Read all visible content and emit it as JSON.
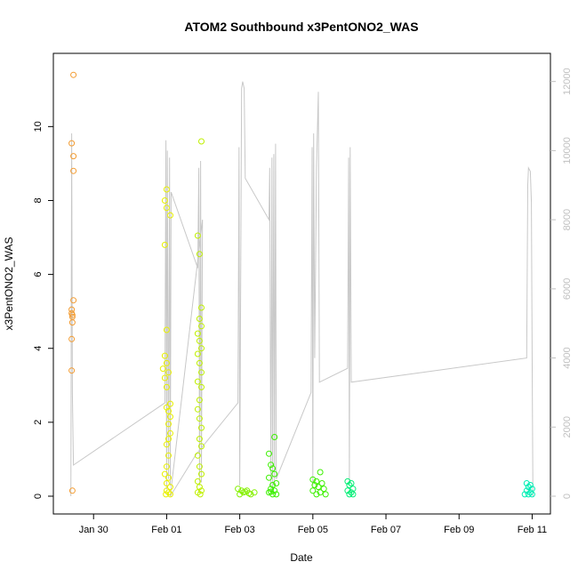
{
  "chart_data": {
    "type": "scatter",
    "title": "ATOM2 Southbound x3PentONO2_WAS",
    "xlabel": "Date",
    "ylabel": "x3PentONO2_WAS",
    "x_axis": {
      "ticks": [
        29.5,
        31.5,
        33.5,
        35.5,
        37.5,
        39.5,
        41.5
      ],
      "tick_labels": [
        "Jan 30",
        "Feb 01",
        "Feb 03",
        "Feb 05",
        "Feb 07",
        "Feb 09",
        "Feb 11"
      ]
    },
    "y_left": {
      "ticks": [
        0,
        2,
        4,
        6,
        8,
        10
      ],
      "lim": [
        0,
        11.5
      ]
    },
    "y_right": {
      "ticks": [
        0,
        2000,
        4000,
        6000,
        8000,
        10000,
        12000
      ],
      "lim": [
        0,
        12300
      ],
      "color": "#c0c0c0"
    },
    "xlim": [
      28.4,
      42.0
    ],
    "point_colors": {
      "orange": "#f39c32",
      "yellow": "#e8f000",
      "yellowgreen": "#bff000",
      "lime": "#84f000",
      "green": "#3cf000",
      "mint": "#00ee74",
      "aqua": "#00eeb4"
    },
    "altitude_line_color": "#c8c8c8",
    "series": [
      {
        "color": "orange",
        "points": [
          [
            28.95,
            11.4
          ],
          [
            28.9,
            9.55
          ],
          [
            28.95,
            9.2
          ],
          [
            28.95,
            8.8
          ],
          [
            28.95,
            5.3
          ],
          [
            28.9,
            5.05
          ],
          [
            28.9,
            4.95
          ],
          [
            28.92,
            4.9
          ],
          [
            28.92,
            4.85
          ],
          [
            28.92,
            4.7
          ],
          [
            28.9,
            4.25
          ],
          [
            28.9,
            3.4
          ],
          [
            28.92,
            0.15
          ]
        ]
      },
      {
        "color": "yellow",
        "points": [
          [
            31.5,
            8.3
          ],
          [
            31.45,
            8.0
          ],
          [
            31.5,
            7.8
          ],
          [
            31.6,
            7.6
          ],
          [
            31.45,
            6.8
          ],
          [
            31.5,
            4.5
          ],
          [
            31.45,
            3.8
          ],
          [
            31.5,
            3.6
          ],
          [
            31.4,
            3.45
          ],
          [
            31.55,
            3.35
          ],
          [
            31.45,
            3.2
          ],
          [
            31.5,
            2.95
          ],
          [
            31.6,
            2.5
          ],
          [
            31.5,
            2.4
          ],
          [
            31.55,
            2.3
          ],
          [
            31.6,
            2.15
          ],
          [
            31.55,
            1.95
          ],
          [
            31.6,
            1.7
          ],
          [
            31.55,
            1.55
          ],
          [
            31.5,
            1.4
          ],
          [
            31.55,
            1.1
          ],
          [
            31.5,
            0.8
          ],
          [
            31.45,
            0.6
          ],
          [
            31.55,
            0.5
          ],
          [
            31.5,
            0.35
          ],
          [
            31.6,
            0.25
          ],
          [
            31.5,
            0.15
          ],
          [
            31.55,
            0.1
          ],
          [
            31.48,
            0.05
          ],
          [
            31.6,
            0.05
          ]
        ]
      },
      {
        "color": "yellowgreen",
        "points": [
          [
            32.45,
            9.6
          ],
          [
            32.35,
            7.05
          ],
          [
            32.4,
            6.55
          ],
          [
            32.45,
            5.1
          ],
          [
            32.4,
            4.8
          ],
          [
            32.45,
            4.6
          ],
          [
            32.35,
            4.4
          ],
          [
            32.4,
            4.2
          ],
          [
            32.45,
            4.0
          ],
          [
            32.35,
            3.85
          ],
          [
            32.4,
            3.6
          ],
          [
            32.45,
            3.35
          ],
          [
            32.35,
            3.1
          ],
          [
            32.45,
            2.95
          ],
          [
            32.4,
            2.6
          ],
          [
            32.35,
            2.35
          ],
          [
            32.4,
            2.1
          ],
          [
            32.45,
            1.85
          ],
          [
            32.4,
            1.55
          ],
          [
            32.45,
            1.35
          ],
          [
            32.35,
            1.1
          ],
          [
            32.4,
            0.8
          ],
          [
            32.45,
            0.6
          ],
          [
            32.35,
            0.4
          ],
          [
            32.4,
            0.25
          ],
          [
            32.45,
            0.15
          ],
          [
            32.35,
            0.1
          ],
          [
            32.42,
            0.05
          ]
        ]
      },
      {
        "color": "lime",
        "points": [
          [
            33.45,
            0.2
          ],
          [
            33.55,
            0.15
          ],
          [
            33.6,
            0.1
          ],
          [
            33.7,
            0.15
          ],
          [
            33.8,
            0.05
          ],
          [
            33.9,
            0.1
          ],
          [
            33.5,
            0.05
          ],
          [
            33.65,
            0.12
          ],
          [
            33.75,
            0.08
          ]
        ]
      },
      {
        "color": "green",
        "points": [
          [
            34.45,
            1.6
          ],
          [
            34.3,
            1.15
          ],
          [
            34.35,
            0.85
          ],
          [
            34.4,
            0.75
          ],
          [
            34.45,
            0.6
          ],
          [
            34.3,
            0.5
          ],
          [
            34.5,
            0.35
          ],
          [
            34.4,
            0.3
          ],
          [
            34.35,
            0.2
          ],
          [
            34.45,
            0.15
          ],
          [
            34.3,
            0.1
          ],
          [
            34.5,
            0.05
          ],
          [
            34.4,
            0.05
          ],
          [
            34.35,
            0.12
          ]
        ]
      },
      {
        "color": "green",
        "points": [
          [
            35.7,
            0.65
          ],
          [
            35.5,
            0.45
          ],
          [
            35.6,
            0.4
          ],
          [
            35.75,
            0.35
          ],
          [
            35.55,
            0.3
          ],
          [
            35.65,
            0.25
          ],
          [
            35.8,
            0.2
          ],
          [
            35.5,
            0.15
          ],
          [
            35.7,
            0.1
          ],
          [
            35.6,
            0.05
          ],
          [
            35.85,
            0.05
          ]
        ]
      },
      {
        "color": "mint",
        "points": [
          [
            36.45,
            0.4
          ],
          [
            36.55,
            0.35
          ],
          [
            36.5,
            0.3
          ],
          [
            36.6,
            0.2
          ],
          [
            36.45,
            0.15
          ],
          [
            36.55,
            0.1
          ],
          [
            36.5,
            0.05
          ],
          [
            36.6,
            0.05
          ]
        ]
      },
      {
        "color": "aqua",
        "points": [
          [
            41.35,
            0.35
          ],
          [
            41.45,
            0.3
          ],
          [
            41.4,
            0.25
          ],
          [
            41.5,
            0.2
          ],
          [
            41.35,
            0.15
          ],
          [
            41.45,
            0.1
          ],
          [
            41.4,
            0.05
          ],
          [
            41.5,
            0.05
          ],
          [
            41.3,
            0.05
          ]
        ]
      }
    ],
    "altitude_line": [
      [
        28.88,
        0
      ],
      [
        28.9,
        10500
      ],
      [
        28.92,
        3000
      ],
      [
        28.95,
        900
      ],
      [
        31.45,
        2700
      ],
      [
        31.48,
        10300
      ],
      [
        31.5,
        200
      ],
      [
        31.52,
        10000
      ],
      [
        31.55,
        500
      ],
      [
        31.58,
        9800
      ],
      [
        31.6,
        300
      ],
      [
        31.62,
        8800
      ],
      [
        32.35,
        6600
      ],
      [
        32.38,
        9500
      ],
      [
        32.4,
        300
      ],
      [
        32.43,
        9700
      ],
      [
        32.45,
        400
      ],
      [
        32.48,
        8000
      ],
      [
        31.6,
        0
      ],
      [
        32.3,
        1200
      ],
      [
        33.45,
        2700
      ],
      [
        33.48,
        10100
      ],
      [
        33.5,
        300
      ],
      [
        33.55,
        11800
      ],
      [
        33.58,
        12000
      ],
      [
        33.62,
        11800
      ],
      [
        33.65,
        9200
      ],
      [
        34.3,
        8000
      ],
      [
        34.32,
        9500
      ],
      [
        34.35,
        300
      ],
      [
        34.38,
        9800
      ],
      [
        34.4,
        200
      ],
      [
        34.43,
        9900
      ],
      [
        34.45,
        300
      ],
      [
        34.48,
        10200
      ],
      [
        34.5,
        500
      ],
      [
        35.45,
        3000
      ],
      [
        35.48,
        10100
      ],
      [
        35.5,
        300
      ],
      [
        35.52,
        10500
      ],
      [
        35.55,
        4000
      ],
      [
        35.6,
        9500
      ],
      [
        35.65,
        11700
      ],
      [
        35.68,
        3300
      ],
      [
        36.45,
        3700
      ],
      [
        36.48,
        9800
      ],
      [
        36.5,
        400
      ],
      [
        36.52,
        10100
      ],
      [
        36.55,
        3300
      ],
      [
        41.35,
        4000
      ],
      [
        41.38,
        9000
      ],
      [
        41.4,
        9500
      ],
      [
        41.45,
        9400
      ],
      [
        41.48,
        8500
      ],
      [
        41.5,
        4200
      ],
      [
        41.52,
        0
      ]
    ]
  }
}
